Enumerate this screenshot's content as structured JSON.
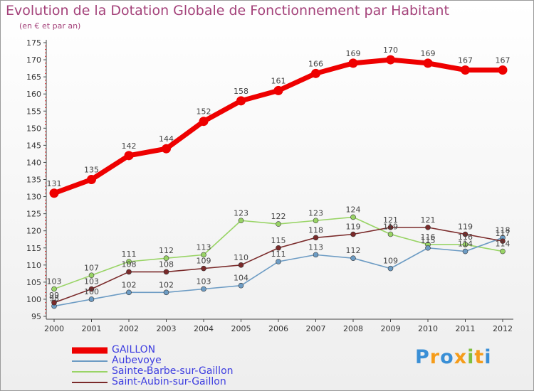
{
  "chart_data": {
    "type": "line",
    "title": "Evolution de la Dotation Globale de Fonctionnement par Habitant",
    "subtitle": "(en € et par an)",
    "xlabel": "",
    "ylabel": "",
    "x": [
      "2000",
      "2001",
      "2002",
      "2003",
      "2004",
      "2005",
      "2006",
      "2007",
      "2008",
      "2009",
      "2010",
      "2011",
      "2012"
    ],
    "ylim": [
      95,
      175
    ],
    "yticks": [
      95,
      100,
      105,
      110,
      115,
      120,
      125,
      130,
      135,
      140,
      145,
      150,
      155,
      160,
      165,
      170,
      175
    ],
    "grid": false,
    "legend_position": "bottom-left",
    "series": [
      {
        "name": "GAILLON",
        "color": "#ee0000",
        "values": [
          131,
          135,
          142,
          144,
          152,
          158,
          161,
          166,
          169,
          170,
          169,
          167,
          167
        ]
      },
      {
        "name": "Aubevoye",
        "color": "#6d9cc4",
        "values": [
          98,
          100,
          102,
          102,
          103,
          104,
          111,
          113,
          112,
          109,
          115,
          114,
          118
        ]
      },
      {
        "name": "Sainte-Barbe-sur-Gaillon",
        "color": "#99d466",
        "values": [
          103,
          107,
          111,
          112,
          113,
          123,
          122,
          123,
          124,
          119,
          116,
          116,
          114
        ]
      },
      {
        "name": "Saint-Aubin-sur-Gaillon",
        "color": "#7a2a2a",
        "values": [
          99,
          103,
          108,
          108,
          109,
          110,
          115,
          118,
          119,
          121,
          121,
          119,
          117
        ]
      }
    ]
  },
  "logo": {
    "text": "Proxiti",
    "colors": [
      "#3a8fd6",
      "#f59c1a",
      "#3a8fd6",
      "#f59c1a",
      "#7fbf3f",
      "#f59c1a",
      "#3a8fd6"
    ]
  }
}
